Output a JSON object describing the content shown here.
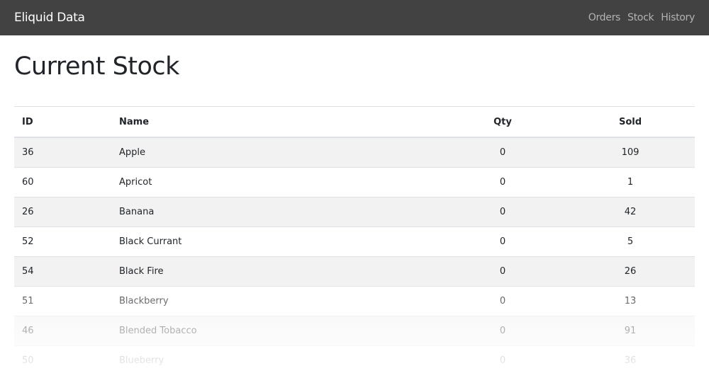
{
  "navbar": {
    "brand": "Eliquid Data",
    "links": [
      "Orders",
      "Stock",
      "History"
    ]
  },
  "page_title": "Current Stock",
  "table": {
    "columns": [
      "ID",
      "Name",
      "Qty",
      "Sold"
    ],
    "rows": [
      [
        "36",
        "Apple",
        "0",
        "109"
      ],
      [
        "60",
        "Apricot",
        "0",
        "1"
      ],
      [
        "26",
        "Banana",
        "0",
        "42"
      ],
      [
        "52",
        "Black Currant",
        "0",
        "5"
      ],
      [
        "54",
        "Black Fire",
        "0",
        "26"
      ],
      [
        "51",
        "Blackberry",
        "0",
        "13"
      ],
      [
        "46",
        "Blended Tobacco",
        "0",
        "91"
      ],
      [
        "50",
        "Blueberry",
        "0",
        "36"
      ]
    ]
  }
}
